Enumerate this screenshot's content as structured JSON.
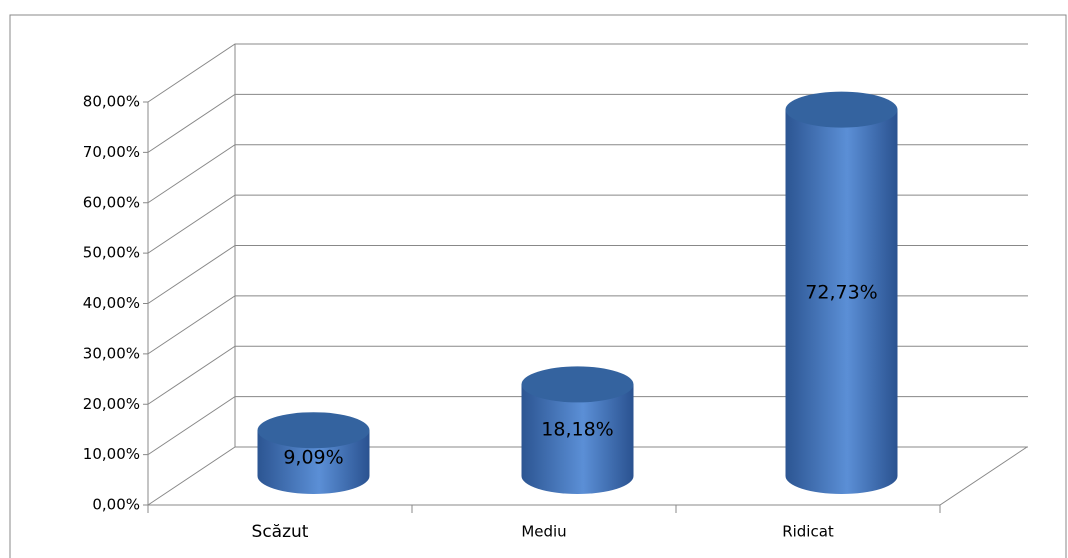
{
  "chart_data": {
    "type": "bar3d_cylinder",
    "categories": [
      "Scăzut",
      "Mediu",
      "Ridicat"
    ],
    "values": [
      9.09,
      18.18,
      72.73
    ],
    "value_labels": [
      "9,09%",
      "18,18%",
      "72,73%"
    ],
    "color": "#4a7cc0",
    "ylim": [
      0,
      80
    ],
    "yticks": [
      {
        "value": 0,
        "label": "0,00%"
      },
      {
        "value": 10,
        "label": "10,00%"
      },
      {
        "value": 20,
        "label": "20,00%"
      },
      {
        "value": 30,
        "label": "30,00%"
      },
      {
        "value": 40,
        "label": "40,00%"
      },
      {
        "value": 50,
        "label": "50,00%"
      },
      {
        "value": 60,
        "label": "60,00%"
      },
      {
        "value": 70,
        "label": "70,00%"
      },
      {
        "value": 80,
        "label": "80,00%"
      }
    ],
    "grid": true
  }
}
